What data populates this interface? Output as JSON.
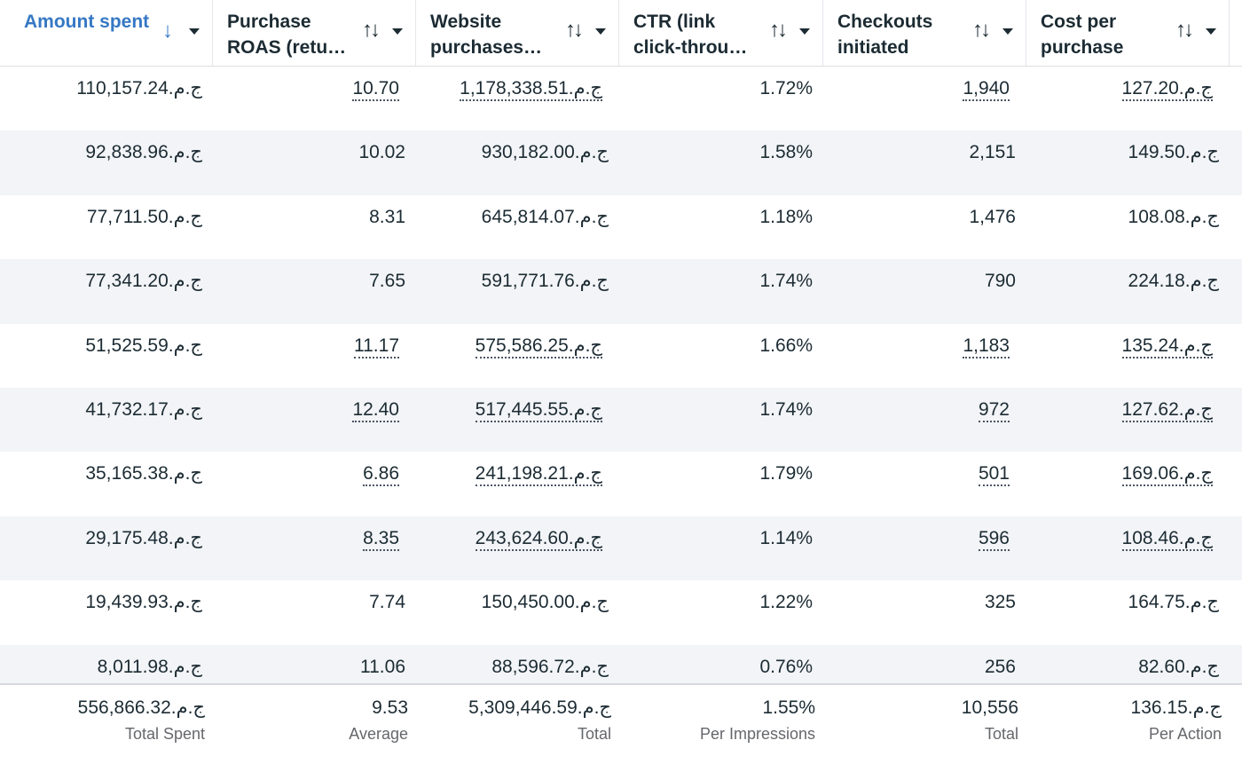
{
  "columns": [
    {
      "label": "Amount spent",
      "sort": "desc",
      "active": true
    },
    {
      "label": "Purchase ROAS (retu…",
      "sort": "both",
      "active": false
    },
    {
      "label": "Website purchases…",
      "sort": "both",
      "active": false
    },
    {
      "label": "CTR (link click-throu…",
      "sort": "both",
      "active": false
    },
    {
      "label": "Checkouts initiated",
      "sort": "both",
      "active": false
    },
    {
      "label": "Cost per purchase",
      "sort": "both",
      "active": false
    }
  ],
  "rows": [
    {
      "spent": "ج.م.110,157.24",
      "roas": "10.70",
      "purchases": "ج.م.1,178,338.51",
      "ctr": "1.72%",
      "checkouts": "1,940",
      "cpp": "ج.م.127.20",
      "dotted": true
    },
    {
      "spent": "ج.م.92,838.96",
      "roas": "10.02",
      "purchases": "ج.م.930,182.00",
      "ctr": "1.58%",
      "checkouts": "2,151",
      "cpp": "ج.م.149.50",
      "dotted": false
    },
    {
      "spent": "ج.م.77,711.50",
      "roas": "8.31",
      "purchases": "ج.م.645,814.07",
      "ctr": "1.18%",
      "checkouts": "1,476",
      "cpp": "ج.م.108.08",
      "dotted": false
    },
    {
      "spent": "ج.م.77,341.20",
      "roas": "7.65",
      "purchases": "ج.م.591,771.76",
      "ctr": "1.74%",
      "checkouts": "790",
      "cpp": "ج.م.224.18",
      "dotted": false
    },
    {
      "spent": "ج.م.51,525.59",
      "roas": "11.17",
      "purchases": "ج.م.575,586.25",
      "ctr": "1.66%",
      "checkouts": "1,183",
      "cpp": "ج.م.135.24",
      "dotted": true
    },
    {
      "spent": "ج.م.41,732.17",
      "roas": "12.40",
      "purchases": "ج.م.517,445.55",
      "ctr": "1.74%",
      "checkouts": "972",
      "cpp": "ج.م.127.62",
      "dotted": true
    },
    {
      "spent": "ج.م.35,165.38",
      "roas": "6.86",
      "purchases": "ج.م.241,198.21",
      "ctr": "1.79%",
      "checkouts": "501",
      "cpp": "ج.م.169.06",
      "dotted": true
    },
    {
      "spent": "ج.م.29,175.48",
      "roas": "8.35",
      "purchases": "ج.م.243,624.60",
      "ctr": "1.14%",
      "checkouts": "596",
      "cpp": "ج.م.108.46",
      "dotted": true
    },
    {
      "spent": "ج.م.19,439.93",
      "roas": "7.74",
      "purchases": "ج.م.150,450.00",
      "ctr": "1.22%",
      "checkouts": "325",
      "cpp": "ج.م.164.75",
      "dotted": false
    },
    {
      "spent": "ج.م.8,011.98",
      "roas": "11.06",
      "purchases": "ج.م.88,596.72",
      "ctr": "0.76%",
      "checkouts": "256",
      "cpp": "ج.م.82.60",
      "dotted": false
    }
  ],
  "totals": [
    {
      "value": "ج.م.556,866.32",
      "label": "Total Spent"
    },
    {
      "value": "9.53",
      "label": "Average"
    },
    {
      "value": "ج.م.5,309,446.59",
      "label": "Total"
    },
    {
      "value": "1.55%",
      "label": "Per Impressions"
    },
    {
      "value": "10,556",
      "label": "Total"
    },
    {
      "value": "ج.م.136.15",
      "label": "Per Action"
    }
  ],
  "colors": {
    "active_header": "#3578c4",
    "stripe": "#f2f4f7",
    "text": "#1c2b33",
    "muted": "#65676b"
  },
  "icons": {
    "sort_desc": "arrow-down-icon",
    "sort_both": "sort-arrows-icon",
    "menu": "caret-down-icon"
  }
}
